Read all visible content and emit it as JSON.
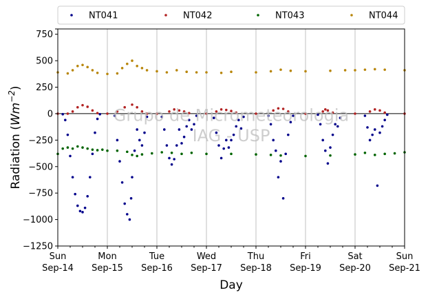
{
  "chart_data": {
    "type": "scatter",
    "title": "",
    "xlabel": "Day",
    "ylabel": "Radiation (Wm⁻²)",
    "ylabel_base": "Radiation (",
    "ylabel_unit": "Wm",
    "ylabel_exp": "−2",
    "ylabel_close": ")",
    "watermark": [
      "Grupo de Micrometeorologia",
      "IAG - USP"
    ],
    "x_unit": "day index from Sun Sep-14 (0) to Sun Sep-21 (7)",
    "xlim": [
      0,
      7
    ],
    "ylim": [
      -1250,
      800
    ],
    "grid": "vertical lines at each day",
    "legend_position": "top, outside plot",
    "x_ticks": [
      {
        "x": 0,
        "day": "Sun",
        "date": "Sep-14"
      },
      {
        "x": 1,
        "day": "Mon",
        "date": "Sep-15"
      },
      {
        "x": 2,
        "day": "Tue",
        "date": "Sep-16"
      },
      {
        "x": 3,
        "day": "Wed",
        "date": "Sep-17"
      },
      {
        "x": 4,
        "day": "Thu",
        "date": "Sep-18"
      },
      {
        "x": 5,
        "day": "Fri",
        "date": "Sep-19"
      },
      {
        "x": 6,
        "day": "Sat",
        "date": "Sep-20"
      },
      {
        "x": 7,
        "day": "Sun",
        "date": "Sep-21"
      }
    ],
    "y_ticks": [
      800,
      750,
      500,
      250,
      0,
      -250,
      -500,
      -750,
      -1000,
      -1250
    ],
    "y_tick_labels": [
      "",
      "750",
      "500",
      "250",
      "0",
      "−250",
      "−500",
      "−750",
      "−1000",
      "−1250"
    ],
    "series": [
      {
        "name": "NT041",
        "color": "#00008b",
        "points": [
          [
            0.1,
            -5
          ],
          [
            0.15,
            -60
          ],
          [
            0.2,
            -200
          ],
          [
            0.25,
            -400
          ],
          [
            0.3,
            -600
          ],
          [
            0.35,
            -760
          ],
          [
            0.4,
            -870
          ],
          [
            0.45,
            -920
          ],
          [
            0.5,
            -930
          ],
          [
            0.55,
            -890
          ],
          [
            0.6,
            -780
          ],
          [
            0.65,
            -600
          ],
          [
            0.7,
            -380
          ],
          [
            0.75,
            -180
          ],
          [
            0.8,
            -50
          ],
          [
            0.85,
            -5
          ],
          [
            1.15,
            -20
          ],
          [
            1.2,
            -250
          ],
          [
            1.25,
            -450
          ],
          [
            1.3,
            -650
          ],
          [
            1.35,
            -850
          ],
          [
            1.4,
            -950
          ],
          [
            1.45,
            -1000
          ],
          [
            1.48,
            -800
          ],
          [
            1.5,
            -600
          ],
          [
            1.55,
            -350
          ],
          [
            1.6,
            -150
          ],
          [
            1.65,
            -250
          ],
          [
            1.7,
            -300
          ],
          [
            1.75,
            -180
          ],
          [
            1.8,
            -30
          ],
          [
            2.1,
            -30
          ],
          [
            2.15,
            -150
          ],
          [
            2.2,
            -300
          ],
          [
            2.25,
            -420
          ],
          [
            2.3,
            -480
          ],
          [
            2.35,
            -430
          ],
          [
            2.4,
            -300
          ],
          [
            2.45,
            -150
          ],
          [
            2.5,
            -280
          ],
          [
            2.55,
            -220
          ],
          [
            2.6,
            -120
          ],
          [
            2.65,
            -60
          ],
          [
            2.7,
            -150
          ],
          [
            2.75,
            -100
          ],
          [
            2.8,
            -20
          ],
          [
            3.15,
            -40
          ],
          [
            3.2,
            -180
          ],
          [
            3.25,
            -300
          ],
          [
            3.3,
            -420
          ],
          [
            3.35,
            -330
          ],
          [
            3.4,
            -250
          ],
          [
            3.45,
            -320
          ],
          [
            3.5,
            -250
          ],
          [
            3.55,
            -200
          ],
          [
            3.6,
            -120
          ],
          [
            3.65,
            -60
          ],
          [
            3.7,
            -140
          ],
          [
            3.75,
            -30
          ],
          [
            4.25,
            -20
          ],
          [
            4.3,
            -100
          ],
          [
            4.35,
            -250
          ],
          [
            4.4,
            -350
          ],
          [
            4.45,
            -600
          ],
          [
            4.5,
            -450
          ],
          [
            4.55,
            -800
          ],
          [
            4.6,
            -380
          ],
          [
            4.65,
            -200
          ],
          [
            4.7,
            -80
          ],
          [
            4.75,
            -20
          ],
          [
            5.25,
            -10
          ],
          [
            5.3,
            -100
          ],
          [
            5.35,
            -250
          ],
          [
            5.4,
            -350
          ],
          [
            5.45,
            -470
          ],
          [
            5.5,
            -320
          ],
          [
            5.55,
            -200
          ],
          [
            5.6,
            -100
          ],
          [
            5.65,
            -120
          ],
          [
            5.7,
            -40
          ],
          [
            6.2,
            -20
          ],
          [
            6.25,
            -130
          ],
          [
            6.3,
            -250
          ],
          [
            6.35,
            -200
          ],
          [
            6.4,
            -150
          ],
          [
            6.45,
            -680
          ],
          [
            6.5,
            -180
          ],
          [
            6.55,
            -120
          ],
          [
            6.6,
            -60
          ],
          [
            6.65,
            -10
          ]
        ]
      },
      {
        "name": "NT042",
        "color": "#b22222",
        "points": [
          [
            0.0,
            0
          ],
          [
            0.2,
            0
          ],
          [
            0.3,
            20
          ],
          [
            0.4,
            60
          ],
          [
            0.5,
            80
          ],
          [
            0.6,
            65
          ],
          [
            0.7,
            30
          ],
          [
            0.8,
            5
          ],
          [
            1.0,
            0
          ],
          [
            1.2,
            20
          ],
          [
            1.35,
            60
          ],
          [
            1.5,
            85
          ],
          [
            1.6,
            60
          ],
          [
            1.7,
            20
          ],
          [
            1.8,
            0
          ],
          [
            2.0,
            0
          ],
          [
            2.25,
            20
          ],
          [
            2.35,
            40
          ],
          [
            2.45,
            30
          ],
          [
            2.55,
            20
          ],
          [
            2.65,
            5
          ],
          [
            3.0,
            0
          ],
          [
            3.2,
            20
          ],
          [
            3.3,
            40
          ],
          [
            3.4,
            35
          ],
          [
            3.5,
            25
          ],
          [
            3.6,
            10
          ],
          [
            4.0,
            0
          ],
          [
            4.35,
            30
          ],
          [
            4.45,
            50
          ],
          [
            4.55,
            45
          ],
          [
            4.65,
            20
          ],
          [
            5.0,
            0
          ],
          [
            5.35,
            20
          ],
          [
            5.4,
            40
          ],
          [
            5.45,
            30
          ],
          [
            5.55,
            10
          ],
          [
            6.0,
            0
          ],
          [
            6.3,
            20
          ],
          [
            6.4,
            40
          ],
          [
            6.5,
            30
          ],
          [
            6.6,
            10
          ],
          [
            7.0,
            0
          ]
        ]
      },
      {
        "name": "NT043",
        "color": "#006400",
        "points": [
          [
            0.0,
            -380
          ],
          [
            0.1,
            -330
          ],
          [
            0.2,
            -320
          ],
          [
            0.3,
            -330
          ],
          [
            0.4,
            -310
          ],
          [
            0.5,
            -320
          ],
          [
            0.6,
            -330
          ],
          [
            0.7,
            -340
          ],
          [
            0.8,
            -345
          ],
          [
            0.9,
            -340
          ],
          [
            1.0,
            -350
          ],
          [
            1.2,
            -350
          ],
          [
            1.4,
            -360
          ],
          [
            1.5,
            -390
          ],
          [
            1.6,
            -400
          ],
          [
            1.7,
            -385
          ],
          [
            1.9,
            -375
          ],
          [
            2.1,
            -365
          ],
          [
            2.3,
            -370
          ],
          [
            2.5,
            -380
          ],
          [
            2.7,
            -370
          ],
          [
            3.0,
            -380
          ],
          [
            3.5,
            -380
          ],
          [
            4.0,
            -385
          ],
          [
            4.3,
            -390
          ],
          [
            4.5,
            -395
          ],
          [
            5.0,
            -400
          ],
          [
            5.5,
            -395
          ],
          [
            6.0,
            -385
          ],
          [
            6.2,
            -370
          ],
          [
            6.4,
            -390
          ],
          [
            6.6,
            -380
          ],
          [
            6.8,
            -375
          ],
          [
            7.0,
            -365
          ]
        ]
      },
      {
        "name": "NT044",
        "color": "#b8860b",
        "points": [
          [
            0.0,
            390
          ],
          [
            0.2,
            380
          ],
          [
            0.3,
            410
          ],
          [
            0.4,
            450
          ],
          [
            0.5,
            460
          ],
          [
            0.6,
            440
          ],
          [
            0.7,
            410
          ],
          [
            0.8,
            385
          ],
          [
            1.0,
            375
          ],
          [
            1.2,
            380
          ],
          [
            1.3,
            430
          ],
          [
            1.4,
            470
          ],
          [
            1.5,
            500
          ],
          [
            1.6,
            450
          ],
          [
            1.7,
            430
          ],
          [
            1.8,
            410
          ],
          [
            2.0,
            400
          ],
          [
            2.2,
            390
          ],
          [
            2.4,
            410
          ],
          [
            2.6,
            395
          ],
          [
            2.8,
            390
          ],
          [
            3.0,
            390
          ],
          [
            3.3,
            385
          ],
          [
            3.5,
            395
          ],
          [
            4.0,
            390
          ],
          [
            4.3,
            400
          ],
          [
            4.5,
            415
          ],
          [
            4.7,
            405
          ],
          [
            5.0,
            400
          ],
          [
            5.5,
            405
          ],
          [
            5.8,
            410
          ],
          [
            6.0,
            410
          ],
          [
            6.2,
            415
          ],
          [
            6.4,
            420
          ],
          [
            6.6,
            415
          ],
          [
            7.0,
            410
          ]
        ]
      }
    ]
  }
}
